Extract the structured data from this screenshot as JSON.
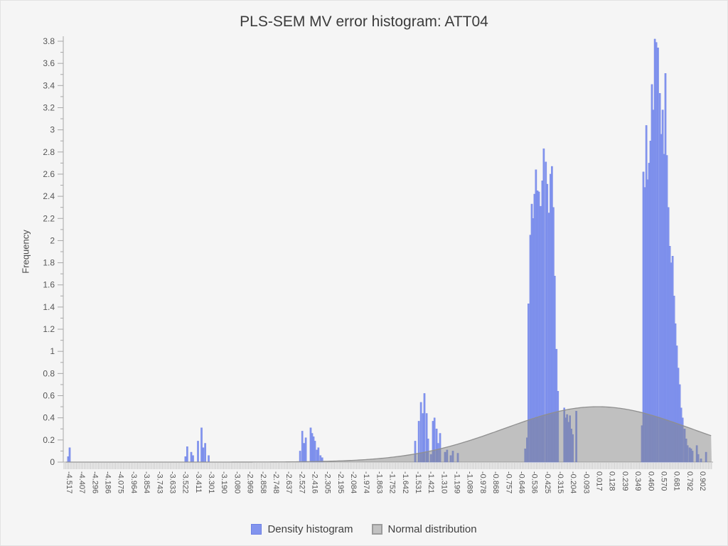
{
  "chart_data": {
    "type": "bar",
    "subtype": "density-histogram-with-normal-curve",
    "title": "PLS-SEM MV error histogram: ATT04",
    "legend": [
      "Density histogram",
      "Normal distribution"
    ],
    "y_axis": {
      "label": "Frequency",
      "min": 0,
      "max": 3.8,
      "major_step": 0.2,
      "minor_step": 0.1
    },
    "x_axis": {
      "first_value": -4.517,
      "last_value": 0.902,
      "step": 0.1106,
      "labels": [
        "-4.517",
        "-4.407",
        "-4.296",
        "-4.186",
        "-4.075",
        "-3.964",
        "-3.854",
        "-3.743",
        "-3.633",
        "-3.522",
        "-3.411",
        "-3.301",
        "-3.190",
        "-3.080",
        "-2.969",
        "-2.858",
        "-2.748",
        "-2.637",
        "-2.527",
        "-2.416",
        "-2.305",
        "-2.195",
        "-2.084",
        "-1.974",
        "-1.863",
        "-1.752",
        "-1.642",
        "-1.531",
        "-1.421",
        "-1.310",
        "-1.199",
        "-1.089",
        "-0.978",
        "-0.868",
        "-0.757",
        "-0.646",
        "-0.536",
        "-0.425",
        "-0.315",
        "-0.204",
        "-0.093",
        "0.017",
        "0.128",
        "0.239",
        "0.349",
        "0.460",
        "0.570",
        "0.681",
        "0.792",
        "0.902"
      ]
    },
    "bar_width_units": 0.0134,
    "bars": [
      [
        -4.53,
        0.05
      ],
      [
        -4.517,
        0.13
      ],
      [
        -3.526,
        0.05
      ],
      [
        -3.511,
        0.14
      ],
      [
        -3.477,
        0.09
      ],
      [
        -3.462,
        0.06
      ],
      [
        -3.419,
        0.19
      ],
      [
        -3.389,
        0.31
      ],
      [
        -3.374,
        0.13
      ],
      [
        -3.358,
        0.17
      ],
      [
        -3.328,
        0.06
      ],
      [
        -2.546,
        0.1
      ],
      [
        -2.527,
        0.28
      ],
      [
        -2.512,
        0.17
      ],
      [
        -2.497,
        0.22
      ],
      [
        -2.455,
        0.31
      ],
      [
        -2.443,
        0.26
      ],
      [
        -2.431,
        0.23
      ],
      [
        -2.419,
        0.19
      ],
      [
        -2.401,
        0.11
      ],
      [
        -2.389,
        0.13
      ],
      [
        -2.371,
        0.06
      ],
      [
        -2.356,
        0.04
      ],
      [
        -1.561,
        0.19
      ],
      [
        -1.53,
        0.37
      ],
      [
        -1.512,
        0.54
      ],
      [
        -1.494,
        0.44
      ],
      [
        -1.482,
        0.62
      ],
      [
        -1.463,
        0.44
      ],
      [
        -1.451,
        0.21
      ],
      [
        -1.427,
        0.07
      ],
      [
        -1.409,
        0.37
      ],
      [
        -1.396,
        0.4
      ],
      [
        -1.378,
        0.3
      ],
      [
        -1.366,
        0.17
      ],
      [
        -1.348,
        0.26
      ],
      [
        -1.306,
        0.09
      ],
      [
        -1.288,
        0.11
      ],
      [
        -1.257,
        0.06
      ],
      [
        -1.239,
        0.1
      ],
      [
        -1.196,
        0.08
      ],
      [
        -0.62,
        0.12
      ],
      [
        -0.604,
        0.22
      ],
      [
        -0.592,
        1.43
      ],
      [
        -0.576,
        2.05
      ],
      [
        -0.564,
        2.33
      ],
      [
        -0.552,
        2.2
      ],
      [
        -0.54,
        2.42
      ],
      [
        -0.528,
        2.64
      ],
      [
        -0.515,
        2.45
      ],
      [
        -0.503,
        2.44
      ],
      [
        -0.489,
        2.31
      ],
      [
        -0.473,
        2.54
      ],
      [
        -0.461,
        2.83
      ],
      [
        -0.443,
        2.71
      ],
      [
        -0.431,
        2.51
      ],
      [
        -0.416,
        2.25
      ],
      [
        -0.403,
        2.6
      ],
      [
        -0.391,
        2.67
      ],
      [
        -0.379,
        2.3
      ],
      [
        -0.367,
        1.68
      ],
      [
        -0.352,
        1.02
      ],
      [
        -0.34,
        0.64
      ],
      [
        -0.286,
        0.49
      ],
      [
        -0.274,
        0.4
      ],
      [
        -0.262,
        0.43
      ],
      [
        -0.25,
        0.36
      ],
      [
        -0.237,
        0.42
      ],
      [
        -0.225,
        0.3
      ],
      [
        -0.213,
        0.25
      ],
      [
        -0.183,
        0.46
      ],
      [
        0.379,
        0.33
      ],
      [
        0.391,
        2.62
      ],
      [
        0.403,
        2.48
      ],
      [
        0.416,
        3.04
      ],
      [
        0.428,
        2.55
      ],
      [
        0.44,
        2.7
      ],
      [
        0.452,
        2.9
      ],
      [
        0.464,
        3.41
      ],
      [
        0.477,
        3.18
      ],
      [
        0.489,
        3.82
      ],
      [
        0.501,
        3.79
      ],
      [
        0.516,
        3.74
      ],
      [
        0.532,
        3.33
      ],
      [
        0.544,
        2.96
      ],
      [
        0.556,
        3.18
      ],
      [
        0.568,
        2.78
      ],
      [
        0.58,
        3.51
      ],
      [
        0.592,
        2.77
      ],
      [
        0.605,
        2.3
      ],
      [
        0.617,
        1.95
      ],
      [
        0.629,
        1.8
      ],
      [
        0.641,
        1.86
      ],
      [
        0.653,
        1.5
      ],
      [
        0.665,
        1.25
      ],
      [
        0.677,
        1.05
      ],
      [
        0.689,
        0.85
      ],
      [
        0.702,
        0.7
      ],
      [
        0.714,
        0.49
      ],
      [
        0.726,
        0.4
      ],
      [
        0.744,
        0.3
      ],
      [
        0.757,
        0.21
      ],
      [
        0.769,
        0.15
      ],
      [
        0.787,
        0.13
      ],
      [
        0.799,
        0.12
      ],
      [
        0.811,
        0.1
      ],
      [
        0.848,
        0.15
      ],
      [
        0.86,
        0.07
      ],
      [
        0.884,
        0.03
      ],
      [
        0.927,
        0.09
      ]
    ],
    "normal_distribution": {
      "mean": 0,
      "sigma": 0.798,
      "peak_density": 0.5,
      "draw_range": [
        -4.55,
        0.975
      ]
    },
    "colors": {
      "bar_fill": "#8294ee",
      "bar_stroke": "#6d80e4",
      "normal_fill": "#808080",
      "normal_fill_opacity": 0.45,
      "normal_stroke": "#8f8f8f",
      "axis_line": "#a8a8a8",
      "tick_comb": "#c6c6c6",
      "tick_text": "#565656",
      "title_text": "#3b3b3b"
    },
    "layout": {
      "grid": false,
      "legend_position": "bottom-center",
      "x_labels_rotated_90": true
    }
  }
}
